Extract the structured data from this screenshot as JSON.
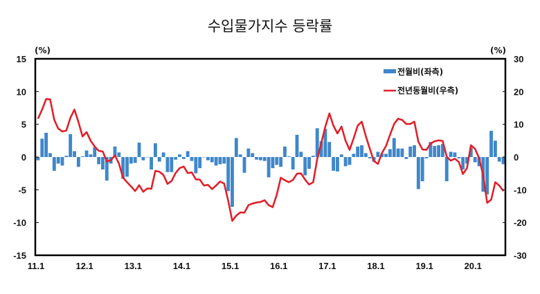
{
  "chart_data": {
    "type": "bar+line",
    "title": "수입물가지수 등락률",
    "left_axis": {
      "unit_label": "(%)",
      "ylim": [
        -15,
        15
      ],
      "ticks": [
        "15",
        "10",
        "5",
        "0",
        "-5",
        "-10",
        "-15"
      ]
    },
    "right_axis": {
      "unit_label": "(%)",
      "ylim": [
        -30,
        30
      ],
      "ticks": [
        "30",
        "20",
        "10",
        "0",
        "-10",
        "-20",
        "-30"
      ]
    },
    "x_tick_labels": [
      "11.1",
      "12.1",
      "13.1",
      "14.1",
      "15.1",
      "16.1",
      "17.1",
      "18.1",
      "19.1",
      "20.1"
    ],
    "x_range": [
      "2011.1",
      "2020.8"
    ],
    "legend_placement": "top-right",
    "grid": false,
    "series": [
      {
        "name": "전월비(좌측)",
        "type": "bar",
        "axis": "left",
        "color": "#3f87c9",
        "values": [
          -0.5,
          2.8,
          3.7,
          0.6,
          -2.1,
          -1.0,
          -1.3,
          0.2,
          3.5,
          0.9,
          -1.5,
          0.1,
          1.0,
          0.4,
          1.5,
          -1.1,
          -1.9,
          -3.6,
          -1.0,
          1.6,
          0.7,
          -3.3,
          -3.0,
          -1.0,
          -0.9,
          2.2,
          -0.5,
          0.0,
          -1.9,
          2.1,
          -0.7,
          0.7,
          -2.3,
          -2.3,
          -0.4,
          0.4,
          -0.3,
          0.9,
          -0.6,
          -2.5,
          -1.7,
          0.0,
          -0.5,
          -0.8,
          -1.3,
          -1.1,
          -1.0,
          -5.2,
          -7.6,
          2.9,
          0.4,
          -2.4,
          1.3,
          0.6,
          -0.4,
          -0.5,
          -0.6,
          -3.1,
          -1.7,
          -1.2,
          -1.5,
          1.6,
          0.1,
          -1.9,
          3.4,
          0.8,
          -2.8,
          -1.8,
          0.2,
          4.4,
          2.4,
          4.3,
          2.3,
          -2.1,
          -2.2,
          0.4,
          -1.4,
          -1.2,
          0.5,
          1.6,
          1.8,
          0.6,
          -0.2,
          -0.7,
          0.8,
          0.5,
          0.5,
          1.2,
          2.9,
          1.3,
          1.3,
          -0.3,
          1.6,
          1.8,
          -4.9,
          -3.7,
          -0.2,
          2.3,
          1.7,
          1.8,
          2.0,
          -3.7,
          0.8,
          0.7,
          -0.2,
          -1.9,
          -1.0,
          1.4,
          -0.8,
          -1.4,
          -5.3,
          -5.7,
          4.0,
          2.5,
          -0.7,
          -1.1
        ]
      },
      {
        "name": "전년동월비(우측)",
        "type": "line",
        "axis": "right",
        "color": "#e0202a",
        "values": [
          11.7,
          14.5,
          17.7,
          17.6,
          11.4,
          8.7,
          7.8,
          8.1,
          12.0,
          14.5,
          10.6,
          6.3,
          7.6,
          5.0,
          3.2,
          1.9,
          1.7,
          -1.3,
          -1.0,
          0.5,
          -2.0,
          -6.3,
          -7.7,
          -9.0,
          -10.4,
          -8.6,
          -10.6,
          -9.6,
          -9.7,
          -4.2,
          -4.5,
          -5.5,
          -8.2,
          -7.3,
          -4.9,
          -3.4,
          -2.9,
          -4.9,
          -4.7,
          -6.8,
          -6.9,
          -8.7,
          -8.5,
          -9.8,
          -8.7,
          -7.5,
          -8.1,
          -13.3,
          -19.5,
          -17.9,
          -16.9,
          -17.0,
          -14.7,
          -14.2,
          -13.9,
          -13.7,
          -13.2,
          -14.7,
          -15.3,
          -11.5,
          -6.3,
          -7.1,
          -7.7,
          -7.0,
          -5.1,
          -5.0,
          -6.9,
          -8.4,
          -7.7,
          -0.6,
          4.3,
          9.3,
          13.3,
          9.6,
          7.2,
          9.3,
          5.0,
          2.2,
          5.7,
          9.6,
          10.8,
          6.4,
          2.5,
          -1.2,
          -2.1,
          1.2,
          3.4,
          6.8,
          10.1,
          11.7,
          11.3,
          10.1,
          10.1,
          10.8,
          4.7,
          2.3,
          2.2,
          4.1,
          4.8,
          5.1,
          4.9,
          0.1,
          -1.1,
          -0.5,
          -1.5,
          -5.2,
          -3.4,
          3.6,
          2.5,
          -0.3,
          -5.6,
          -14.0,
          -13.0,
          -7.7,
          -8.7,
          -10.4
        ]
      }
    ]
  }
}
